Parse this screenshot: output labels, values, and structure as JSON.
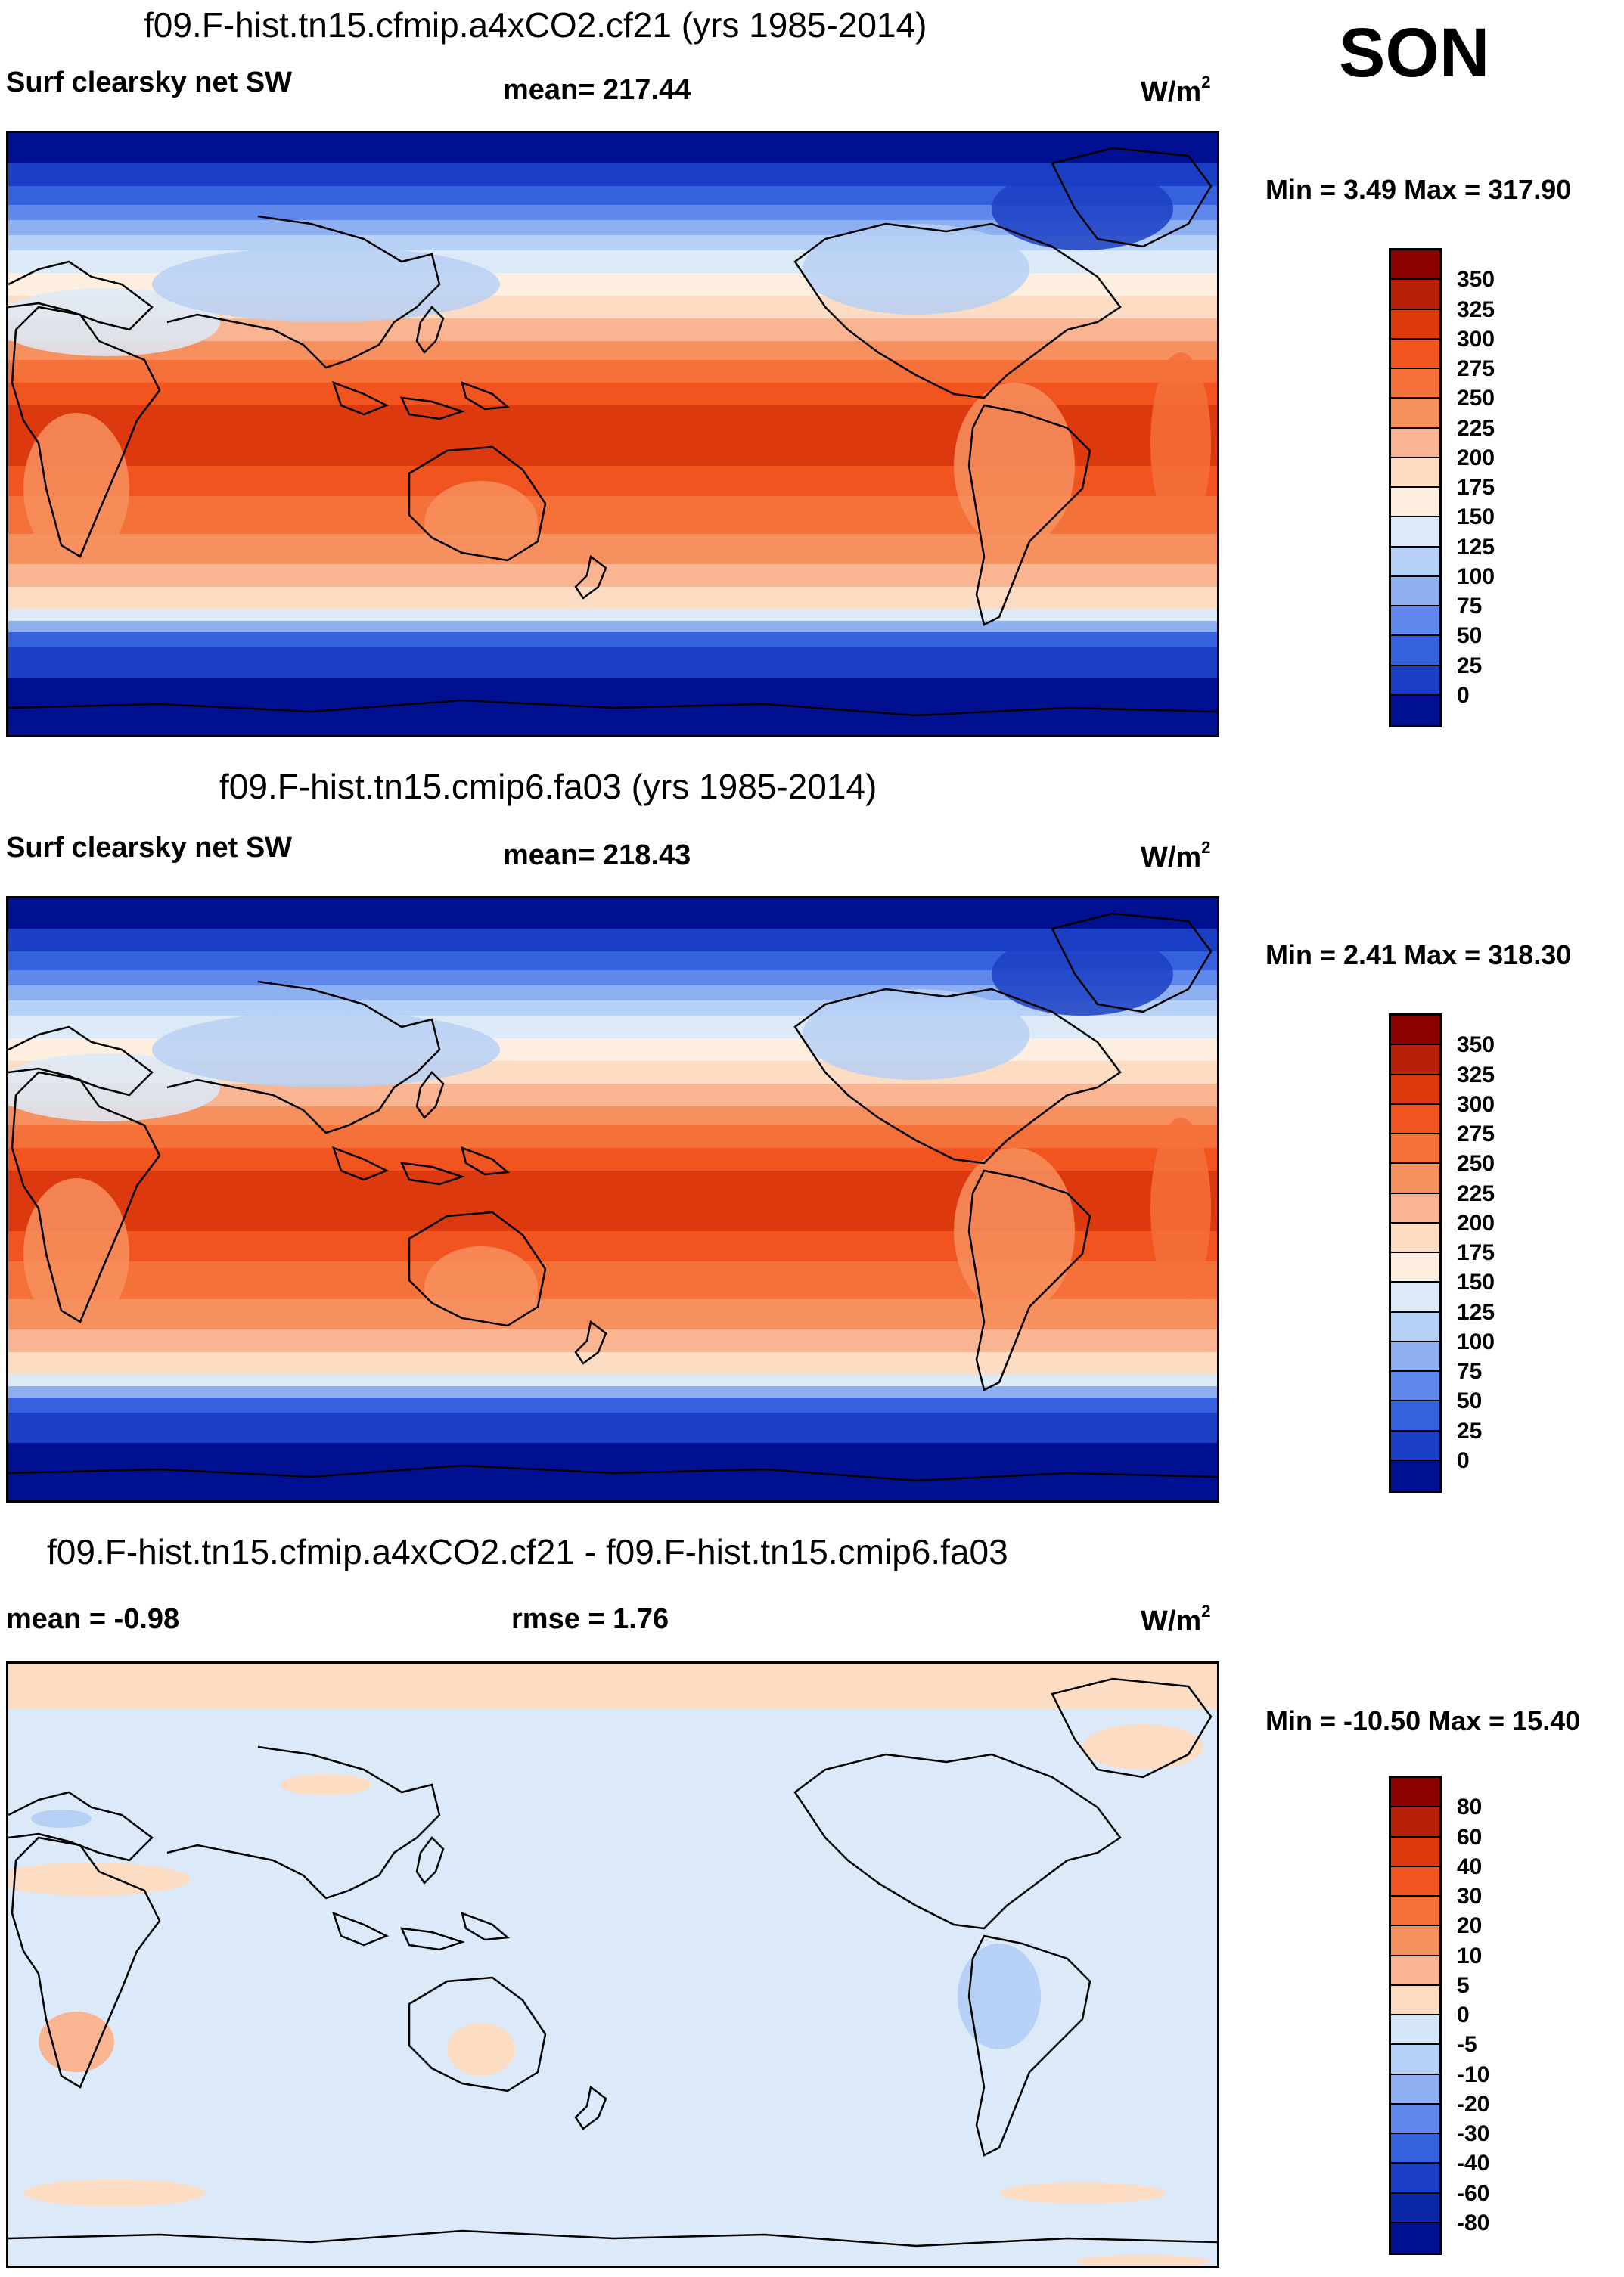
{
  "season": "SON",
  "units_base": "W/m",
  "units_exp": "2",
  "panels": [
    {
      "title": "f09.F-hist.tn15.cfmip.a4xCO2.cf21 (yrs 1985-2014)",
      "left_label": "Surf clearsky net SW",
      "center_label": "mean= 217.44",
      "minmax": "Min =   3.49 Max = 317.90",
      "kind": "field"
    },
    {
      "title": "f09.F-hist.tn15.cmip6.fa03 (yrs 1985-2014)",
      "left_label": "Surf clearsky net SW",
      "center_label": "mean= 218.43",
      "minmax": "Min =   2.41 Max = 318.30",
      "kind": "field"
    },
    {
      "title": "f09.F-hist.tn15.cfmip.a4xCO2.cf21 - f09.F-hist.tn15.cmip6.fa03",
      "left_label": "mean =  -0.98",
      "center_label": "rmse =   1.76",
      "minmax": "Min = -10.50 Max =  15.40",
      "kind": "diff"
    }
  ],
  "colorbar_field": {
    "labels": [
      "350",
      "325",
      "300",
      "275",
      "250",
      "225",
      "200",
      "175",
      "150",
      "125",
      "100",
      "75",
      "50",
      "25",
      "0"
    ],
    "colors": [
      "#8b0000",
      "#b8200a",
      "#dc3a0e",
      "#f2541f",
      "#f4713a",
      "#f7905f",
      "#f9b592",
      "#fcdcc3",
      "#fdeee0",
      "#dceaf8",
      "#b7d0f5",
      "#8eb0f0",
      "#5f88ea",
      "#3561dc",
      "#1b3fc4",
      "#001090"
    ]
  },
  "colorbar_diff": {
    "labels": [
      "80",
      "60",
      "40",
      "30",
      "20",
      "10",
      "5",
      "0",
      "-5",
      "-10",
      "-20",
      "-30",
      "-40",
      "-60",
      "-80"
    ],
    "colors": [
      "#8b0000",
      "#b8200a",
      "#dc3a0e",
      "#f2541f",
      "#f4713a",
      "#f7905f",
      "#f9b592",
      "#fcdcc3",
      "#d5e6f9",
      "#b7d0f5",
      "#8eb0f0",
      "#5f88ea",
      "#3561dc",
      "#1b3fc4",
      "#0a28a8",
      "#001090"
    ]
  }
}
